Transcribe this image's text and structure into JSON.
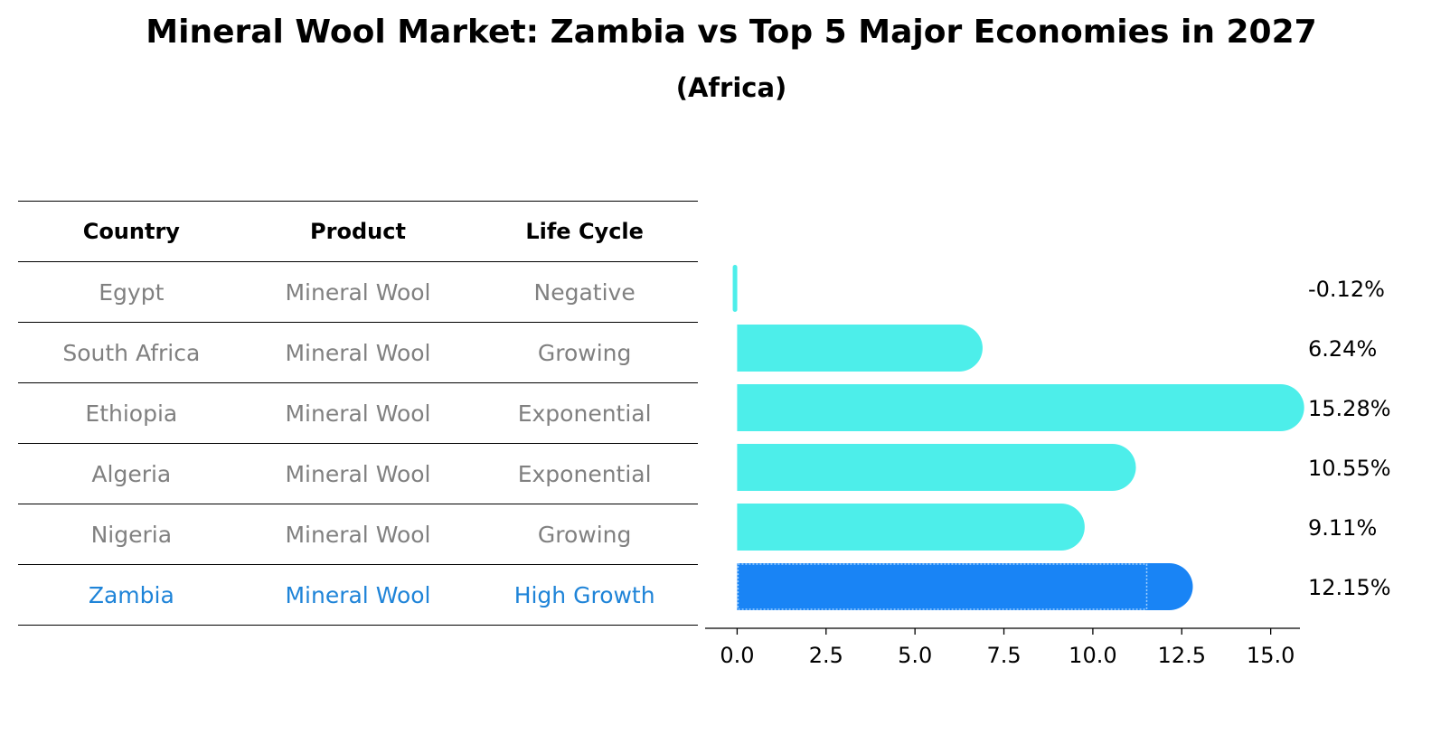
{
  "title": "Mineral Wool Market: Zambia vs Top 5 Major Economies in 2027",
  "subtitle": "(Africa)",
  "table": {
    "headers": [
      "Country",
      "Product",
      "Life Cycle"
    ],
    "rows": [
      [
        "Egypt",
        "Mineral Wool",
        "Negative"
      ],
      [
        "South Africa",
        "Mineral Wool",
        "Growing"
      ],
      [
        "Ethiopia",
        "Mineral Wool",
        "Exponential"
      ],
      [
        "Algeria",
        "Mineral Wool",
        "Exponential"
      ],
      [
        "Nigeria",
        "Mineral Wool",
        "Growing"
      ],
      [
        "Zambia",
        "Mineral Wool",
        "High Growth"
      ]
    ],
    "highlight_row": 5
  },
  "chart_data": {
    "type": "bar",
    "orientation": "horizontal",
    "categories": [
      "Egypt",
      "South Africa",
      "Ethiopia",
      "Algeria",
      "Nigeria",
      "Zambia"
    ],
    "values": [
      -0.12,
      6.24,
      15.28,
      10.55,
      9.11,
      12.15
    ],
    "value_labels": [
      "-0.12%",
      "6.24%",
      "15.28%",
      "10.55%",
      "9.11%",
      "12.15%"
    ],
    "xticks": [
      "0.0",
      "2.5",
      "5.0",
      "7.5",
      "10.0",
      "12.5",
      "15.0"
    ],
    "xlim": [
      -0.9,
      16.0
    ],
    "grid": false,
    "colors": {
      "default": "#4deeea",
      "highlight": "#1984f5",
      "highlight_text": "#1f84d8",
      "muted_text": "#808080"
    },
    "highlight_index": 5
  }
}
